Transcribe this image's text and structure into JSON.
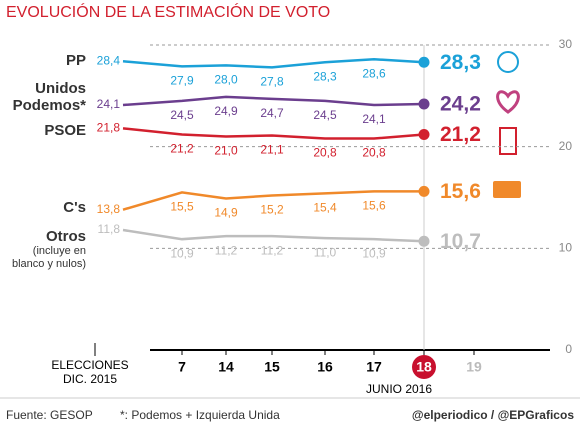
{
  "chart_data": {
    "type": "line",
    "title": "EVOLUCIÓN DE LA ESTIMACIÓN DE VOTO",
    "categories": [
      "ELECCIONES DIC. 2015",
      "7",
      "14",
      "15",
      "16",
      "17",
      "18",
      "19"
    ],
    "period_label": "JUNIO 2016",
    "ylim": [
      0,
      30
    ],
    "yticks": [
      0,
      10,
      20,
      30
    ],
    "grid": true,
    "series": [
      {
        "name": "PP",
        "color": "#1ba1d8",
        "values": [
          28.4,
          27.9,
          28.0,
          27.8,
          28.3,
          28.6,
          28.3,
          null
        ],
        "value_labels": [
          "28,4",
          "27,9",
          "28,0",
          "27,8",
          "28,3",
          "28,6",
          "28,3",
          null
        ]
      },
      {
        "name": "Unidos Podemos*",
        "color": "#6b3e8e",
        "values": [
          24.1,
          24.5,
          24.9,
          24.7,
          24.5,
          24.1,
          24.2,
          null
        ],
        "value_labels": [
          "24,1",
          "24,5",
          "24,9",
          "24,7",
          "24,5",
          "24,1",
          "24,2",
          null
        ]
      },
      {
        "name": "PSOE",
        "color": "#d2202e",
        "values": [
          21.8,
          21.2,
          21.0,
          21.1,
          20.8,
          20.8,
          21.2,
          null
        ],
        "value_labels": [
          "21,8",
          "21,2",
          "21,0",
          "21,1",
          "20,8",
          "20,8",
          "21,2",
          null
        ]
      },
      {
        "name": "C's",
        "color": "#f0892a",
        "values": [
          13.8,
          15.5,
          14.9,
          15.2,
          15.4,
          15.6,
          15.6,
          null
        ],
        "value_labels": [
          "13,8",
          "15,5",
          "14,9",
          "15,2",
          "15,4",
          "15,6",
          "15,6",
          null
        ]
      },
      {
        "name": "Otros",
        "note": "(incluye en blanco y nulos)",
        "color": "#bdbdbd",
        "values": [
          11.8,
          10.9,
          11.2,
          11.2,
          11.0,
          10.9,
          10.7,
          null
        ],
        "value_labels": [
          "11,8",
          "10,9",
          "11,2",
          "11,2",
          "11,0",
          "10,9",
          "10,7",
          null
        ]
      }
    ],
    "source": "Fuente: GESOP",
    "footnote": "*: Podemos + Izquierda Unida",
    "credit": "@elperiodico / @EPGraficos"
  }
}
